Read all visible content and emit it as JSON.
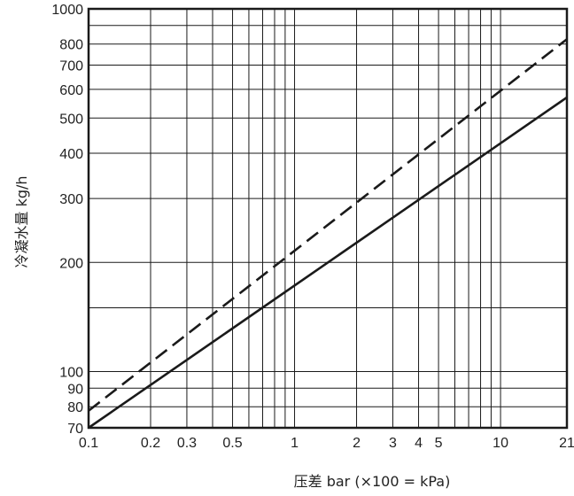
{
  "chart_data": {
    "type": "line",
    "title": "",
    "xlabel": "压差 bar (×100 = kPa)",
    "ylabel": "冷凝水量 kg/h",
    "x_scale": "log",
    "y_scale": "log",
    "xlim": [
      0.1,
      21
    ],
    "ylim": [
      70,
      1000
    ],
    "grid": true,
    "legend": "none",
    "x_ticks": [
      {
        "value": 0.1,
        "label": "0.1"
      },
      {
        "value": 0.2,
        "label": "0.2"
      },
      {
        "value": 0.3,
        "label": "0.3"
      },
      {
        "value": 0.5,
        "label": "0.5"
      },
      {
        "value": 1,
        "label": "1"
      },
      {
        "value": 2,
        "label": "2"
      },
      {
        "value": 3,
        "label": "3"
      },
      {
        "value": 4,
        "label": "4"
      },
      {
        "value": 5,
        "label": "5"
      },
      {
        "value": 10,
        "label": "10"
      },
      {
        "value": 21,
        "label": "21"
      }
    ],
    "y_ticks": [
      {
        "value": 70,
        "label": "70"
      },
      {
        "value": 80,
        "label": "80"
      },
      {
        "value": 90,
        "label": "90"
      },
      {
        "value": 100,
        "label": "100"
      },
      {
        "value": 200,
        "label": "200"
      },
      {
        "value": 300,
        "label": "300"
      },
      {
        "value": 400,
        "label": "400"
      },
      {
        "value": 500,
        "label": "500"
      },
      {
        "value": 600,
        "label": "600"
      },
      {
        "value": 700,
        "label": "700"
      },
      {
        "value": 800,
        "label": "800"
      },
      {
        "value": 1000,
        "label": "1000"
      }
    ],
    "x_gridlines": [
      0.1,
      0.2,
      0.3,
      0.4,
      0.5,
      0.6,
      0.7,
      0.8,
      0.9,
      1,
      2,
      3,
      4,
      5,
      6,
      7,
      8,
      9,
      10,
      21
    ],
    "y_gridlines": [
      70,
      80,
      90,
      100,
      150,
      200,
      300,
      400,
      500,
      600,
      700,
      800,
      900,
      1000
    ],
    "series": [
      {
        "style": "dashed",
        "color": "#1a1a1a",
        "points": [
          [
            0.1,
            78
          ],
          [
            21,
            825
          ]
        ]
      },
      {
        "style": "solid",
        "color": "#1a1a1a",
        "points": [
          [
            0.1,
            70
          ],
          [
            21,
            570
          ]
        ]
      }
    ]
  }
}
